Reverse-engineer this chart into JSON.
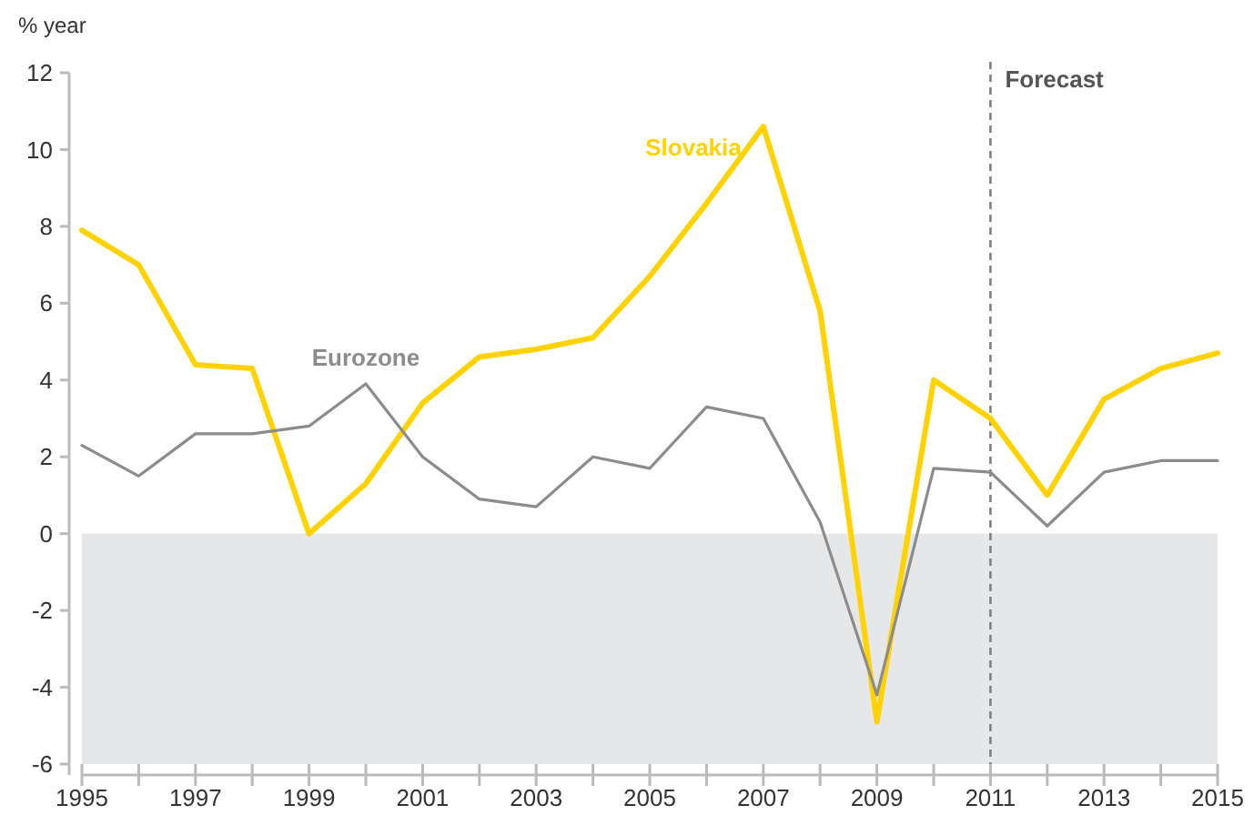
{
  "chart_data": {
    "type": "line",
    "ylabel": "% year",
    "x": [
      1995,
      1996,
      1997,
      1998,
      1999,
      2000,
      2001,
      2002,
      2003,
      2004,
      2005,
      2006,
      2007,
      2008,
      2009,
      2010,
      2011,
      2012,
      2013,
      2014,
      2015
    ],
    "series": [
      {
        "name": "Slovakia",
        "color": "#ffd200",
        "values": [
          7.9,
          7.0,
          4.4,
          4.3,
          0.0,
          1.3,
          3.4,
          4.6,
          4.8,
          5.1,
          6.7,
          8.6,
          10.6,
          5.8,
          -4.9,
          4.0,
          3.0,
          1.0,
          3.5,
          4.3,
          4.7
        ]
      },
      {
        "name": "Eurozone",
        "color": "#8c8c8c",
        "values": [
          2.3,
          1.5,
          2.6,
          2.6,
          2.8,
          3.9,
          2.0,
          0.9,
          0.7,
          2.0,
          1.7,
          3.3,
          3.0,
          0.3,
          -4.2,
          1.7,
          1.6,
          0.2,
          1.6,
          1.9,
          1.9
        ]
      }
    ],
    "xlim": [
      1995,
      2015
    ],
    "xticks": [
      1995,
      {
        "value": 1996,
        "label": null
      },
      1997,
      {
        "value": 1998,
        "label": null
      },
      1999,
      {
        "value": 2000,
        "label": null
      },
      2001,
      {
        "value": 2002,
        "label": null
      },
      2003,
      {
        "value": 2004,
        "label": null
      },
      2005,
      {
        "value": 2006,
        "label": null
      },
      2007,
      {
        "value": 2008,
        "label": null
      },
      2009,
      {
        "value": 2010,
        "label": null
      },
      2011,
      {
        "value": 2012,
        "label": null
      },
      2013,
      {
        "value": 2014,
        "label": null
      },
      2015
    ],
    "ylim": [
      -6,
      12
    ],
    "yticks": [
      -6,
      -4,
      -2,
      0,
      2,
      4,
      6,
      8,
      10,
      12
    ],
    "ref_lines": [
      {
        "axis": "x",
        "value": 2011,
        "label": "Forecast",
        "color": "#808080",
        "line_style": "dashed"
      }
    ],
    "bands": [
      {
        "axis": "y",
        "from": -6,
        "to": 0,
        "color": "#e6e7e8"
      }
    ],
    "grid": false,
    "legend": false,
    "marker": "none",
    "line_style": "solid"
  }
}
